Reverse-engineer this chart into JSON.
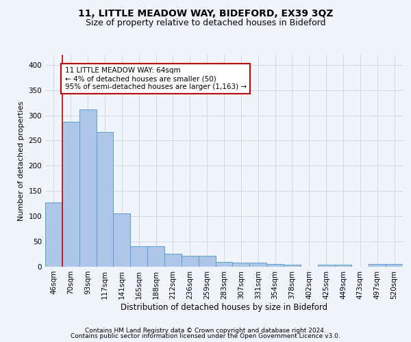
{
  "title1": "11, LITTLE MEADOW WAY, BIDEFORD, EX39 3QZ",
  "title2": "Size of property relative to detached houses in Bideford",
  "xlabel": "Distribution of detached houses by size in Bideford",
  "ylabel": "Number of detached properties",
  "categories": [
    "46sqm",
    "70sqm",
    "93sqm",
    "117sqm",
    "141sqm",
    "165sqm",
    "188sqm",
    "212sqm",
    "236sqm",
    "259sqm",
    "283sqm",
    "307sqm",
    "331sqm",
    "354sqm",
    "378sqm",
    "402sqm",
    "425sqm",
    "449sqm",
    "473sqm",
    "497sqm",
    "520sqm"
  ],
  "values": [
    128,
    287,
    311,
    267,
    106,
    41,
    41,
    26,
    22,
    22,
    10,
    8,
    8,
    6,
    4,
    0,
    4,
    4,
    0,
    5,
    5
  ],
  "bar_color": "#aec6e8",
  "bar_edge_color": "#5a9fd4",
  "grid_color": "#d0d8e8",
  "background_color": "#f0f4fb",
  "annotation_text": "11 LITTLE MEADOW WAY: 64sqm\n← 4% of detached houses are smaller (50)\n95% of semi-detached houses are larger (1,163) →",
  "annotation_box_color": "#ffffff",
  "annotation_box_edge": "#cc0000",
  "annotation_text_color": "#000000",
  "red_line_color": "#cc0000",
  "ylim": [
    0,
    420
  ],
  "yticks": [
    0,
    50,
    100,
    150,
    200,
    250,
    300,
    350,
    400
  ],
  "footer1": "Contains HM Land Registry data © Crown copyright and database right 2024.",
  "footer2": "Contains public sector information licensed under the Open Government Licence v3.0.",
  "title1_fontsize": 10,
  "title2_fontsize": 9,
  "xlabel_fontsize": 8.5,
  "ylabel_fontsize": 8,
  "tick_fontsize": 7.5,
  "annotation_fontsize": 7.5,
  "footer_fontsize": 6.5
}
